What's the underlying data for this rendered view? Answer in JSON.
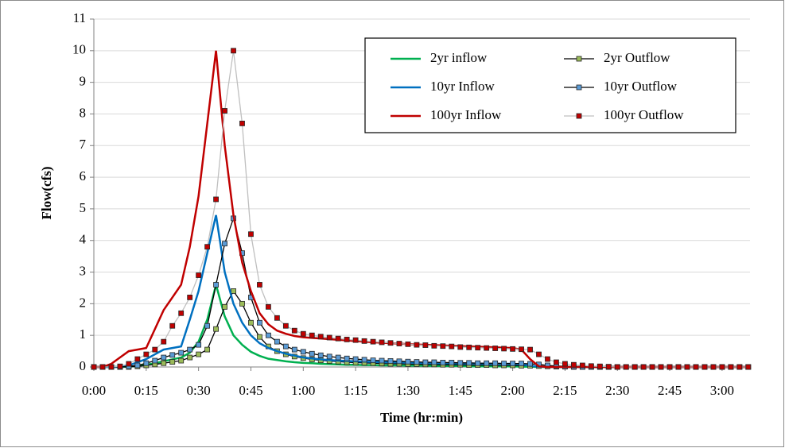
{
  "chart_data": {
    "type": "line",
    "x_label": "Time (hr:min)",
    "y_label": "Flow(cfs)",
    "x": [
      0,
      2.5,
      5,
      7.5,
      10,
      12.5,
      15,
      17.5,
      20,
      22.5,
      25,
      27.5,
      30,
      32.5,
      35,
      37.5,
      40,
      42.5,
      45,
      47.5,
      50,
      52.5,
      55,
      57.5,
      60,
      62.5,
      65,
      67.5,
      70,
      72.5,
      75,
      77.5,
      80,
      82.5,
      85,
      87.5,
      90,
      92.5,
      95,
      97.5,
      100,
      102.5,
      105,
      107.5,
      110,
      112.5,
      115,
      117.5,
      120,
      122.5,
      125,
      127.5,
      130,
      132.5,
      135,
      137.5,
      140,
      142.5,
      145,
      147.5,
      150,
      152.5,
      155,
      157.5,
      160,
      162.5,
      165,
      167.5,
      170,
      172.5,
      175,
      177.5,
      180,
      182.5,
      185,
      187.5
    ],
    "xlim": [
      0,
      188
    ],
    "xticks": [
      {
        "value": 0,
        "label": "0:00"
      },
      {
        "value": 15,
        "label": "0:15"
      },
      {
        "value": 30,
        "label": "0:30"
      },
      {
        "value": 45,
        "label": "0:45"
      },
      {
        "value": 60,
        "label": "1:00"
      },
      {
        "value": 75,
        "label": "1:15"
      },
      {
        "value": 90,
        "label": "1:30"
      },
      {
        "value": 105,
        "label": "1:45"
      },
      {
        "value": 120,
        "label": "2:00"
      },
      {
        "value": 135,
        "label": "2:15"
      },
      {
        "value": 150,
        "label": "2:30"
      },
      {
        "value": 165,
        "label": "2:45"
      },
      {
        "value": 180,
        "label": "3:00"
      }
    ],
    "ylim": [
      0,
      11
    ],
    "yticks": [
      0,
      1,
      2,
      3,
      4,
      5,
      6,
      7,
      8,
      9,
      10,
      11
    ],
    "grid": true,
    "legend": "top-right",
    "series": [
      {
        "name": "2yr inflow",
        "color": "#00b050",
        "marker": false,
        "values": [
          0,
          0,
          0,
          0,
          0.01,
          0.03,
          0.07,
          0.12,
          0.18,
          0.24,
          0.3,
          0.45,
          0.8,
          1.5,
          2.6,
          1.6,
          1.0,
          0.7,
          0.48,
          0.35,
          0.26,
          0.22,
          0.18,
          0.15,
          0.13,
          0.12,
          0.1,
          0.09,
          0.08,
          0.07,
          0.07,
          0.06,
          0.06,
          0.05,
          0.05,
          0.05,
          0.04,
          0.04,
          0.04,
          0.03,
          0.03,
          0.03,
          0.03,
          0.02,
          0.02,
          0.02,
          0.02,
          0.02,
          0.02,
          0.01,
          0.01,
          0,
          0,
          0,
          0,
          0,
          0,
          0,
          0,
          0,
          0,
          0,
          0,
          0,
          0,
          0,
          0,
          0,
          0,
          0,
          0,
          0,
          0,
          0,
          0,
          0
        ]
      },
      {
        "name": "2yr Outflow",
        "color": "#000000",
        "marker": true,
        "marker_color": "#9bbb59",
        "values": [
          0,
          0,
          0,
          0,
          0,
          0.02,
          0.05,
          0.08,
          0.12,
          0.16,
          0.2,
          0.3,
          0.4,
          0.55,
          1.2,
          1.9,
          2.4,
          2.0,
          1.4,
          0.95,
          0.65,
          0.5,
          0.4,
          0.33,
          0.28,
          0.24,
          0.21,
          0.19,
          0.17,
          0.15,
          0.14,
          0.13,
          0.12,
          0.11,
          0.1,
          0.1,
          0.09,
          0.09,
          0.08,
          0.08,
          0.07,
          0.07,
          0.07,
          0.06,
          0.06,
          0.06,
          0.05,
          0.05,
          0.05,
          0.04,
          0.04,
          0.03,
          0.02,
          0.01,
          0.01,
          0,
          0,
          0,
          0,
          0,
          0,
          0,
          0,
          0,
          0,
          0,
          0,
          0,
          0,
          0,
          0,
          0,
          0,
          0,
          0,
          0
        ]
      },
      {
        "name": "10yr Inflow",
        "color": "#0070c0",
        "marker": false,
        "values": [
          0,
          0,
          0,
          0,
          0.05,
          0.15,
          0.25,
          0.4,
          0.55,
          0.6,
          0.65,
          1.5,
          2.4,
          3.6,
          4.8,
          3.0,
          2.0,
          1.4,
          1.0,
          0.75,
          0.6,
          0.5,
          0.42,
          0.36,
          0.3,
          0.27,
          0.24,
          0.22,
          0.2,
          0.19,
          0.18,
          0.17,
          0.16,
          0.15,
          0.15,
          0.14,
          0.14,
          0.13,
          0.13,
          0.12,
          0.12,
          0.12,
          0.11,
          0.11,
          0.11,
          0.1,
          0.1,
          0.1,
          0.1,
          0.08,
          0.04,
          0.01,
          0,
          0,
          0,
          0,
          0,
          0,
          0,
          0,
          0,
          0,
          0,
          0,
          0,
          0,
          0,
          0,
          0,
          0,
          0,
          0,
          0,
          0,
          0,
          0
        ]
      },
      {
        "name": "10yr Outflow",
        "color": "#000000",
        "marker": true,
        "marker_color": "#5b9bd5",
        "values": [
          0,
          0,
          0,
          0,
          0.02,
          0.05,
          0.12,
          0.2,
          0.3,
          0.38,
          0.45,
          0.55,
          0.7,
          1.3,
          2.6,
          3.9,
          4.7,
          3.6,
          2.2,
          1.4,
          1.0,
          0.8,
          0.65,
          0.55,
          0.48,
          0.42,
          0.37,
          0.33,
          0.3,
          0.27,
          0.25,
          0.23,
          0.21,
          0.2,
          0.19,
          0.18,
          0.17,
          0.16,
          0.15,
          0.15,
          0.14,
          0.14,
          0.13,
          0.13,
          0.12,
          0.12,
          0.12,
          0.11,
          0.11,
          0.11,
          0.1,
          0.08,
          0.05,
          0.03,
          0.02,
          0.01,
          0,
          0,
          0,
          0,
          0,
          0,
          0,
          0,
          0,
          0,
          0,
          0,
          0,
          0,
          0,
          0,
          0,
          0,
          0,
          0
        ]
      },
      {
        "name": "100yr Inflow",
        "color": "#c00000",
        "marker": false,
        "values": [
          0,
          0,
          0.1,
          0.3,
          0.5,
          0.55,
          0.6,
          1.2,
          1.8,
          2.2,
          2.6,
          3.8,
          5.4,
          7.7,
          10.0,
          7.0,
          4.8,
          3.3,
          2.4,
          1.7,
          1.35,
          1.15,
          1.05,
          0.98,
          0.94,
          0.92,
          0.9,
          0.88,
          0.86,
          0.84,
          0.82,
          0.8,
          0.78,
          0.77,
          0.75,
          0.74,
          0.72,
          0.71,
          0.7,
          0.69,
          0.68,
          0.67,
          0.66,
          0.65,
          0.64,
          0.63,
          0.62,
          0.61,
          0.6,
          0.55,
          0.25,
          0.02,
          0,
          0,
          0,
          0,
          0,
          0,
          0,
          0,
          0,
          0,
          0,
          0,
          0,
          0,
          0,
          0,
          0,
          0,
          0,
          0,
          0,
          0,
          0,
          0
        ]
      },
      {
        "name": "100yr Outflow",
        "color": "#bfbfbf",
        "marker": true,
        "marker_color": "#c00000",
        "values": [
          0,
          0,
          0,
          0.02,
          0.1,
          0.25,
          0.4,
          0.55,
          0.8,
          1.3,
          1.7,
          2.2,
          2.9,
          3.8,
          5.3,
          8.1,
          10.0,
          7.7,
          4.2,
          2.6,
          1.9,
          1.55,
          1.3,
          1.15,
          1.05,
          1.0,
          0.96,
          0.93,
          0.9,
          0.87,
          0.85,
          0.82,
          0.8,
          0.78,
          0.76,
          0.74,
          0.72,
          0.7,
          0.69,
          0.67,
          0.66,
          0.65,
          0.63,
          0.62,
          0.61,
          0.6,
          0.59,
          0.58,
          0.57,
          0.56,
          0.55,
          0.4,
          0.25,
          0.15,
          0.1,
          0.07,
          0.05,
          0.03,
          0.02,
          0.01,
          0,
          0,
          0,
          0,
          0,
          0,
          0,
          0,
          0,
          0,
          0,
          0,
          0,
          0,
          0,
          0
        ]
      }
    ]
  }
}
